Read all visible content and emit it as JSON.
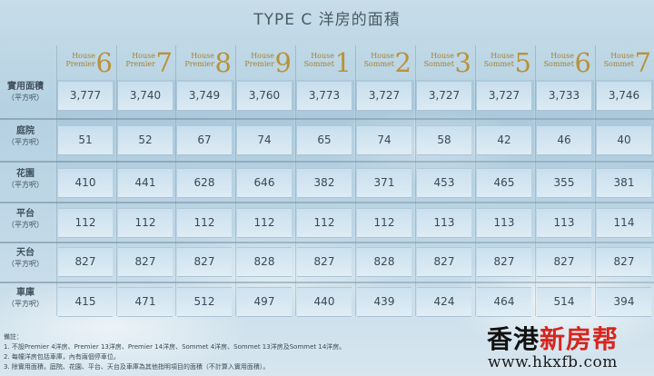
{
  "title": "TYPE C 洋房的面積",
  "houses": [
    {
      "name_line1": "House",
      "name_line2": "Premier",
      "number": "6"
    },
    {
      "name_line1": "House",
      "name_line2": "Premier",
      "number": "7"
    },
    {
      "name_line1": "House",
      "name_line2": "Premier",
      "number": "8"
    },
    {
      "name_line1": "House",
      "name_line2": "Premier",
      "number": "9"
    },
    {
      "name_line1": "House",
      "name_line2": "Sommet",
      "number": "1"
    },
    {
      "name_line1": "House",
      "name_line2": "Sommet",
      "number": "2"
    },
    {
      "name_line1": "House",
      "name_line2": "Sommet",
      "number": "3"
    },
    {
      "name_line1": "House",
      "name_line2": "Sommet",
      "number": "5"
    },
    {
      "name_line1": "House",
      "name_line2": "Sommet",
      "number": "6"
    },
    {
      "name_line1": "House",
      "name_line2": "Sommet",
      "number": "7"
    }
  ],
  "rows": [
    {
      "label": "實用面積",
      "unit": "（平方呎）",
      "values": [
        "3,777",
        "3,740",
        "3,749",
        "3,760",
        "3,773",
        "3,727",
        "3,727",
        "3,727",
        "3,733",
        "3,746"
      ]
    },
    {
      "label": "庭院",
      "unit": "（平方呎）",
      "values": [
        "51",
        "52",
        "67",
        "74",
        "65",
        "74",
        "58",
        "42",
        "46",
        "40"
      ]
    },
    {
      "label": "花園",
      "unit": "（平方呎）",
      "values": [
        "410",
        "441",
        "628",
        "646",
        "382",
        "371",
        "453",
        "465",
        "355",
        "381"
      ]
    },
    {
      "label": "平台",
      "unit": "（平方呎）",
      "values": [
        "112",
        "112",
        "112",
        "112",
        "112",
        "112",
        "113",
        "113",
        "113",
        "114"
      ]
    },
    {
      "label": "天台",
      "unit": "（平方呎）",
      "values": [
        "827",
        "827",
        "827",
        "828",
        "827",
        "828",
        "827",
        "827",
        "827",
        "827"
      ]
    },
    {
      "label": "車庫",
      "unit": "（平方呎）",
      "values": [
        "415",
        "471",
        "512",
        "497",
        "440",
        "439",
        "424",
        "464",
        "514",
        "394"
      ]
    }
  ],
  "notes": {
    "heading": "備註：",
    "lines": [
      "1. 不設Premier 4洋房、Premier 13洋房、Premier 14洋房、Sommet 4洋房、Sommet 13洋房及Sommet 14洋房。",
      "2. 每幢洋房包括車庫，內有兩個停車位。",
      "3. 除實用面積，庭院、花園、平台、天台及車庫為其他指明項目的面積（不計算入實用面積）。"
    ]
  },
  "watermark": {
    "part1": "香港",
    "part2": "新房帮",
    "url": "www.hkxfb.com"
  }
}
